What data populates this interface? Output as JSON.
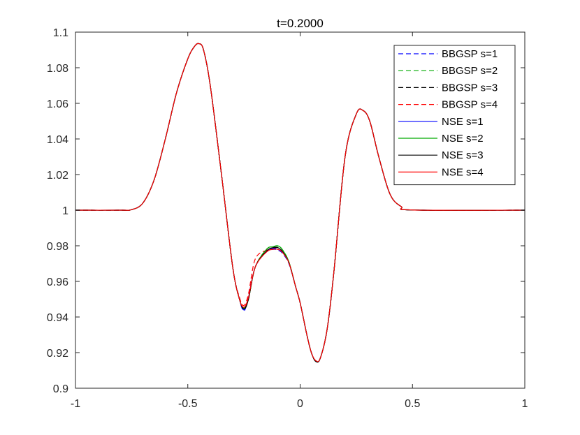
{
  "chart_data": {
    "type": "line",
    "title": "t=0.2000",
    "xlabel": "",
    "ylabel": "",
    "xlim": [
      -1,
      1
    ],
    "ylim": [
      0.9,
      1.1
    ],
    "xticks": [
      "-1",
      "-0.5",
      "0",
      "0.5",
      "1"
    ],
    "yticks": [
      "0.9",
      "0.92",
      "0.94",
      "0.96",
      "0.98",
      "1",
      "1.02",
      "1.04",
      "1.06",
      "1.08",
      "1.1"
    ],
    "grid": false,
    "legend_position": "top-right",
    "x": [
      -1.0,
      -0.8,
      -0.75,
      -0.7,
      -0.65,
      -0.6,
      -0.55,
      -0.5,
      -0.47,
      -0.45,
      -0.43,
      -0.4,
      -0.35,
      -0.3,
      -0.27,
      -0.25,
      -0.23,
      -0.2,
      -0.15,
      -0.12,
      -0.1,
      -0.08,
      -0.05,
      -0.02,
      0.0,
      0.03,
      0.05,
      0.07,
      0.09,
      0.12,
      0.15,
      0.2,
      0.25,
      0.28,
      0.31,
      0.35,
      0.4,
      0.45,
      0.5,
      1.0
    ],
    "series": [
      {
        "name": "BBGSP s=1",
        "color": "#0000ff",
        "style": "dashed",
        "values": [
          1.0,
          1.0,
          1.0003,
          1.004,
          1.017,
          1.04,
          1.066,
          1.085,
          1.092,
          1.0935,
          1.09,
          1.07,
          1.02,
          0.968,
          0.95,
          0.9435,
          0.951,
          0.968,
          0.9765,
          0.978,
          0.9775,
          0.976,
          0.97,
          0.957,
          0.948,
          0.93,
          0.92,
          0.915,
          0.917,
          0.933,
          0.965,
          1.03,
          1.054,
          1.056,
          1.05,
          1.03,
          1.009,
          1.002,
          1.0001,
          1.0
        ]
      },
      {
        "name": "BBGSP s=2",
        "color": "#00aa00",
        "style": "dashed",
        "values": [
          1.0,
          1.0,
          1.0003,
          1.004,
          1.017,
          1.04,
          1.066,
          1.085,
          1.092,
          1.0935,
          1.09,
          1.07,
          1.02,
          0.968,
          0.95,
          0.945,
          0.95,
          0.968,
          0.978,
          0.9795,
          0.9798,
          0.978,
          0.971,
          0.957,
          0.948,
          0.93,
          0.92,
          0.915,
          0.917,
          0.933,
          0.965,
          1.03,
          1.054,
          1.056,
          1.05,
          1.03,
          1.009,
          1.002,
          1.0001,
          1.0
        ]
      },
      {
        "name": "BBGSP s=3",
        "color": "#000000",
        "style": "dashed",
        "values": [
          1.0,
          1.0,
          1.0003,
          1.004,
          1.017,
          1.04,
          1.066,
          1.085,
          1.092,
          1.0935,
          1.09,
          1.07,
          1.02,
          0.968,
          0.95,
          0.9445,
          0.95,
          0.968,
          0.977,
          0.9785,
          0.979,
          0.977,
          0.9705,
          0.957,
          0.948,
          0.93,
          0.92,
          0.915,
          0.917,
          0.933,
          0.965,
          1.03,
          1.054,
          1.056,
          1.05,
          1.03,
          1.009,
          1.002,
          1.0001,
          1.0
        ]
      },
      {
        "name": "BBGSP s=4",
        "color": "#ff0000",
        "style": "dashed",
        "values": [
          1.0,
          1.0,
          1.0003,
          1.004,
          1.017,
          1.04,
          1.066,
          1.085,
          1.092,
          1.0935,
          1.09,
          1.07,
          1.02,
          0.968,
          0.951,
          0.9465,
          0.953,
          0.9725,
          0.9775,
          0.978,
          0.978,
          0.9765,
          0.9705,
          0.957,
          0.948,
          0.93,
          0.92,
          0.915,
          0.917,
          0.933,
          0.965,
          1.03,
          1.054,
          1.056,
          1.05,
          1.03,
          1.009,
          1.002,
          1.0001,
          1.0
        ]
      },
      {
        "name": "NSE s=1",
        "color": "#0000ff",
        "style": "solid",
        "values": [
          1.0,
          1.0,
          1.0003,
          1.004,
          1.017,
          1.04,
          1.066,
          1.085,
          1.092,
          1.0935,
          1.09,
          1.07,
          1.02,
          0.968,
          0.95,
          0.944,
          0.951,
          0.968,
          0.977,
          0.9785,
          0.978,
          0.9765,
          0.9705,
          0.957,
          0.948,
          0.93,
          0.92,
          0.915,
          0.917,
          0.933,
          0.965,
          1.03,
          1.054,
          1.056,
          1.05,
          1.03,
          1.009,
          1.002,
          1.0001,
          1.0
        ]
      },
      {
        "name": "NSE s=2",
        "color": "#00aa00",
        "style": "solid",
        "values": [
          1.0,
          1.0,
          1.0003,
          1.004,
          1.017,
          1.04,
          1.066,
          1.085,
          1.092,
          1.0935,
          1.09,
          1.07,
          1.02,
          0.968,
          0.95,
          0.945,
          0.95,
          0.968,
          0.978,
          0.9795,
          0.98,
          0.978,
          0.971,
          0.957,
          0.948,
          0.93,
          0.92,
          0.915,
          0.917,
          0.933,
          0.965,
          1.03,
          1.054,
          1.056,
          1.05,
          1.03,
          1.009,
          1.002,
          1.0001,
          1.0
        ]
      },
      {
        "name": "NSE s=3",
        "color": "#000000",
        "style": "solid",
        "values": [
          1.0,
          1.0,
          1.0003,
          1.004,
          1.017,
          1.04,
          1.066,
          1.085,
          1.092,
          1.0935,
          1.09,
          1.07,
          1.02,
          0.968,
          0.95,
          0.9445,
          0.95,
          0.968,
          0.977,
          0.979,
          0.979,
          0.977,
          0.9705,
          0.957,
          0.948,
          0.93,
          0.92,
          0.915,
          0.917,
          0.933,
          0.965,
          1.03,
          1.054,
          1.056,
          1.05,
          1.03,
          1.009,
          1.002,
          1.0001,
          1.0
        ]
      },
      {
        "name": "NSE s=4",
        "color": "#ff0000",
        "style": "solid",
        "values": [
          1.0,
          1.0,
          1.0003,
          1.004,
          1.017,
          1.04,
          1.066,
          1.085,
          1.092,
          1.0935,
          1.09,
          1.07,
          1.02,
          0.968,
          0.95,
          0.9455,
          0.951,
          0.968,
          0.9765,
          0.978,
          0.978,
          0.9765,
          0.9705,
          0.957,
          0.948,
          0.93,
          0.92,
          0.9155,
          0.917,
          0.933,
          0.965,
          1.03,
          1.054,
          1.056,
          1.05,
          1.03,
          1.009,
          1.002,
          1.0001,
          1.0
        ]
      }
    ]
  }
}
